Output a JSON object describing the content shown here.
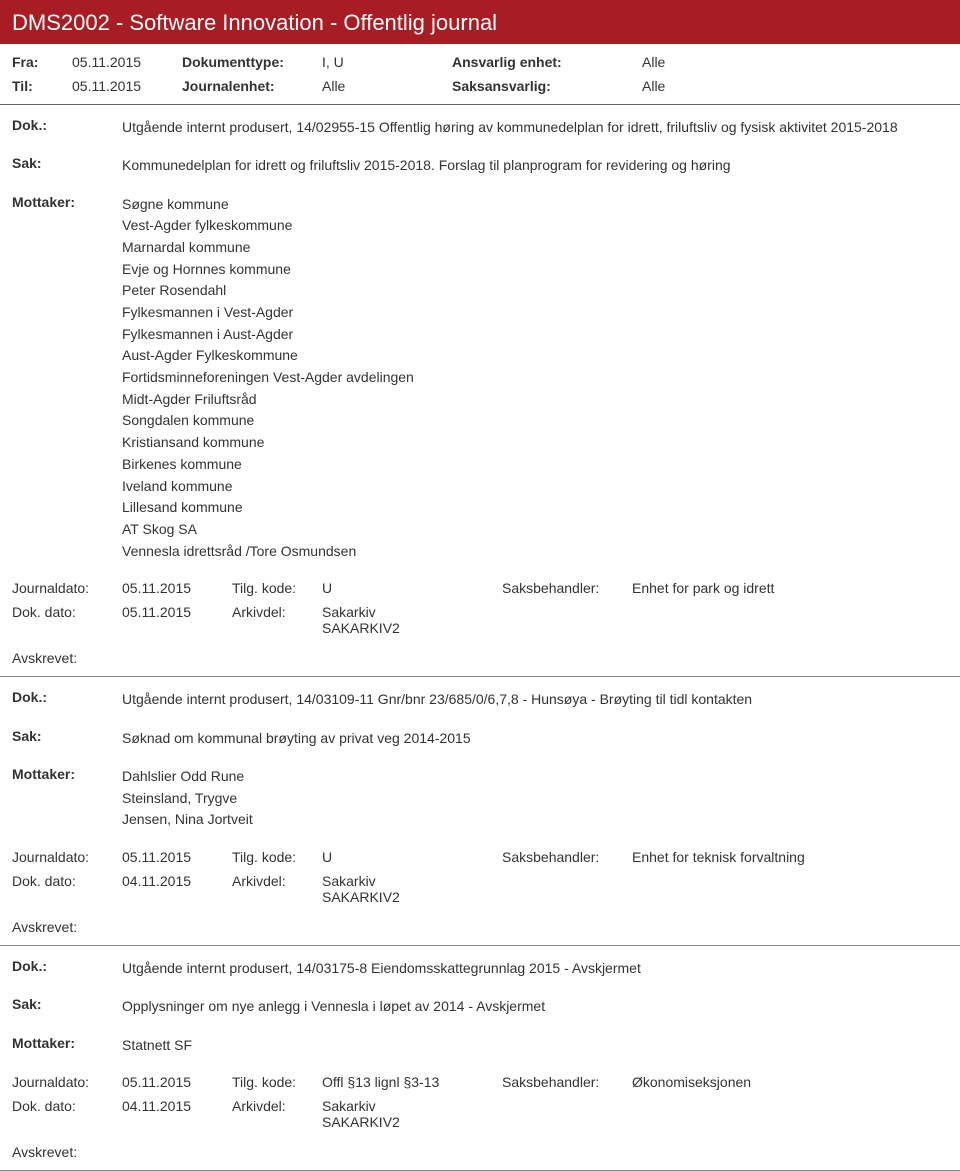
{
  "header": {
    "title": "DMS2002 - Software Innovation - Offentlig journal"
  },
  "filters": {
    "fra_label": "Fra:",
    "fra_value": "05.11.2015",
    "til_label": "Til:",
    "til_value": "05.11.2015",
    "doktype_label": "Dokumenttype:",
    "doktype_value": "I, U",
    "journalenhet_label": "Journalenhet:",
    "journalenhet_value": "Alle",
    "ansvarlig_label": "Ansvarlig enhet:",
    "ansvarlig_value": "Alle",
    "saksansvarlig_label": "Saksansvarlig:",
    "saksansvarlig_value": "Alle"
  },
  "labels": {
    "dok": "Dok.:",
    "sak": "Sak:",
    "mottaker": "Mottaker:",
    "journaldato": "Journaldato:",
    "tilgkode": "Tilg. kode:",
    "saksbehandler": "Saksbehandler:",
    "dokdato": "Dok. dato:",
    "arkivdel": "Arkivdel:",
    "avskrevet": "Avskrevet:"
  },
  "entries": [
    {
      "dok": "Utgående internt produsert, 14/02955-15 Offentlig høring av kommunedelplan for idrett, friluftsliv og fysisk aktivitet 2015-2018",
      "sak": "Kommunedelplan for idrett og friluftsliv 2015-2018. Forslag til planprogram for revidering og høring",
      "mottaker": [
        "Søgne kommune",
        "Vest-Agder fylkeskommune",
        "Marnardal kommune",
        "Evje og Hornnes kommune",
        "Peter Rosendahl",
        "Fylkesmannen i Vest-Agder",
        "Fylkesmannen i Aust-Agder",
        "Aust-Agder Fylkeskommune",
        "Fortidsminneforeningen Vest-Agder avdelingen",
        "Midt-Agder Friluftsråd",
        "Songdalen kommune",
        "Kristiansand kommune",
        "Birkenes kommune",
        "Iveland kommune",
        "Lillesand kommune",
        "AT Skog SA",
        "Vennesla idrettsråd /Tore Osmundsen"
      ],
      "journaldato": "05.11.2015",
      "tilgkode": "U",
      "saksbehandler": "Enhet for park og idrett",
      "dokdato": "05.11.2015",
      "arkivdel": "Sakarkiv\nSAKARKIV2"
    },
    {
      "dok": "Utgående internt produsert, 14/03109-11 Gnr/bnr 23/685/0/6,7,8 - Hunsøya - Brøyting til tidl kontakten",
      "sak": "Søknad om kommunal brøyting av privat veg 2014-2015",
      "mottaker": [
        "Dahlslier Odd Rune",
        "Steinsland, Trygve",
        "Jensen, Nina Jortveit"
      ],
      "journaldato": "05.11.2015",
      "tilgkode": "U",
      "saksbehandler": "Enhet for teknisk forvaltning",
      "dokdato": "04.11.2015",
      "arkivdel": "Sakarkiv\nSAKARKIV2"
    },
    {
      "dok": "Utgående internt produsert, 14/03175-8 Eiendomsskattegrunnlag 2015 - Avskjermet",
      "sak": "Opplysninger om nye anlegg i Vennesla i løpet av 2014 - Avskjermet",
      "mottaker": [
        "Statnett SF"
      ],
      "journaldato": "05.11.2015",
      "tilgkode": "Offl §13 lignl §3-13",
      "saksbehandler": "Økonomiseksjonen",
      "dokdato": "04.11.2015",
      "arkivdel": "Sakarkiv\nSAKARKIV2"
    }
  ]
}
